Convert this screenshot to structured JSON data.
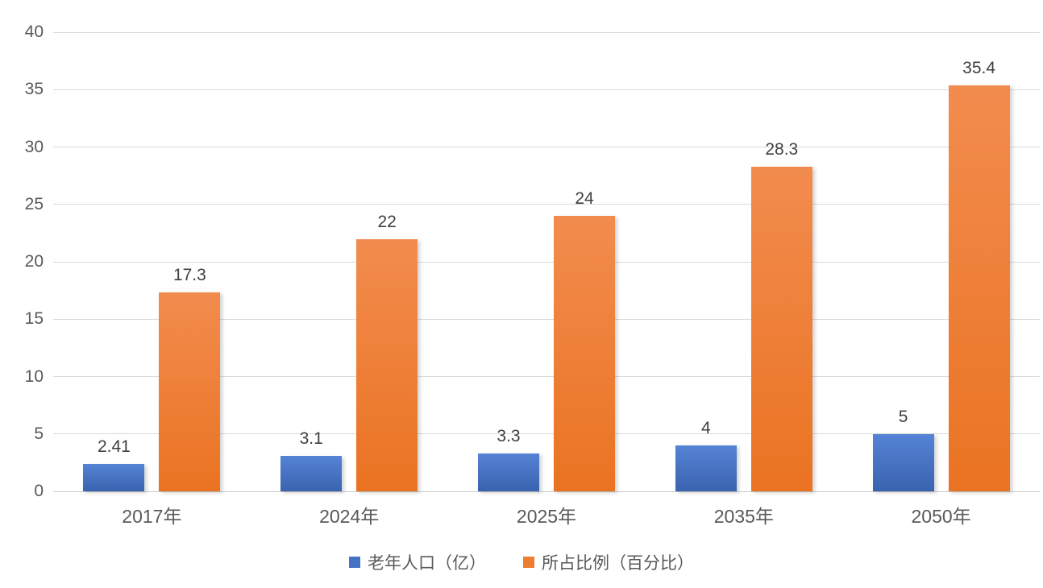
{
  "chart_data": {
    "type": "bar",
    "title": "",
    "xlabel": "",
    "ylabel": "",
    "categories": [
      "2017年",
      "2024年",
      "2025年",
      "2035年",
      "2050年"
    ],
    "series": [
      {
        "name": "老年人口（亿）",
        "color": "#4472C4",
        "color_light": "#5583D6",
        "color_dark": "#3A63AE",
        "values": [
          2.41,
          3.1,
          3.3,
          4,
          5
        ],
        "labels": [
          "2.41",
          "3.1",
          "3.3",
          "4",
          "5"
        ]
      },
      {
        "name": "所占比例（百分比）",
        "color": "#ED7D31",
        "color_light": "#F28C4E",
        "color_dark": "#EA7322",
        "values": [
          17.3,
          22,
          24,
          28.3,
          35.4
        ],
        "labels": [
          "17.3",
          "22",
          "24",
          "28.3",
          "35.4"
        ]
      }
    ],
    "ylim": [
      0,
      40
    ],
    "ytick_step": 5,
    "yticks": [
      "0",
      "5",
      "10",
      "15",
      "20",
      "25",
      "30",
      "35",
      "40"
    ],
    "grid": true,
    "legend_position": "bottom"
  },
  "colors": {
    "background": "#FFFFFF",
    "gridline": "#D9D9D9",
    "axis_text": "#595959",
    "data_label_text": "#404040"
  }
}
